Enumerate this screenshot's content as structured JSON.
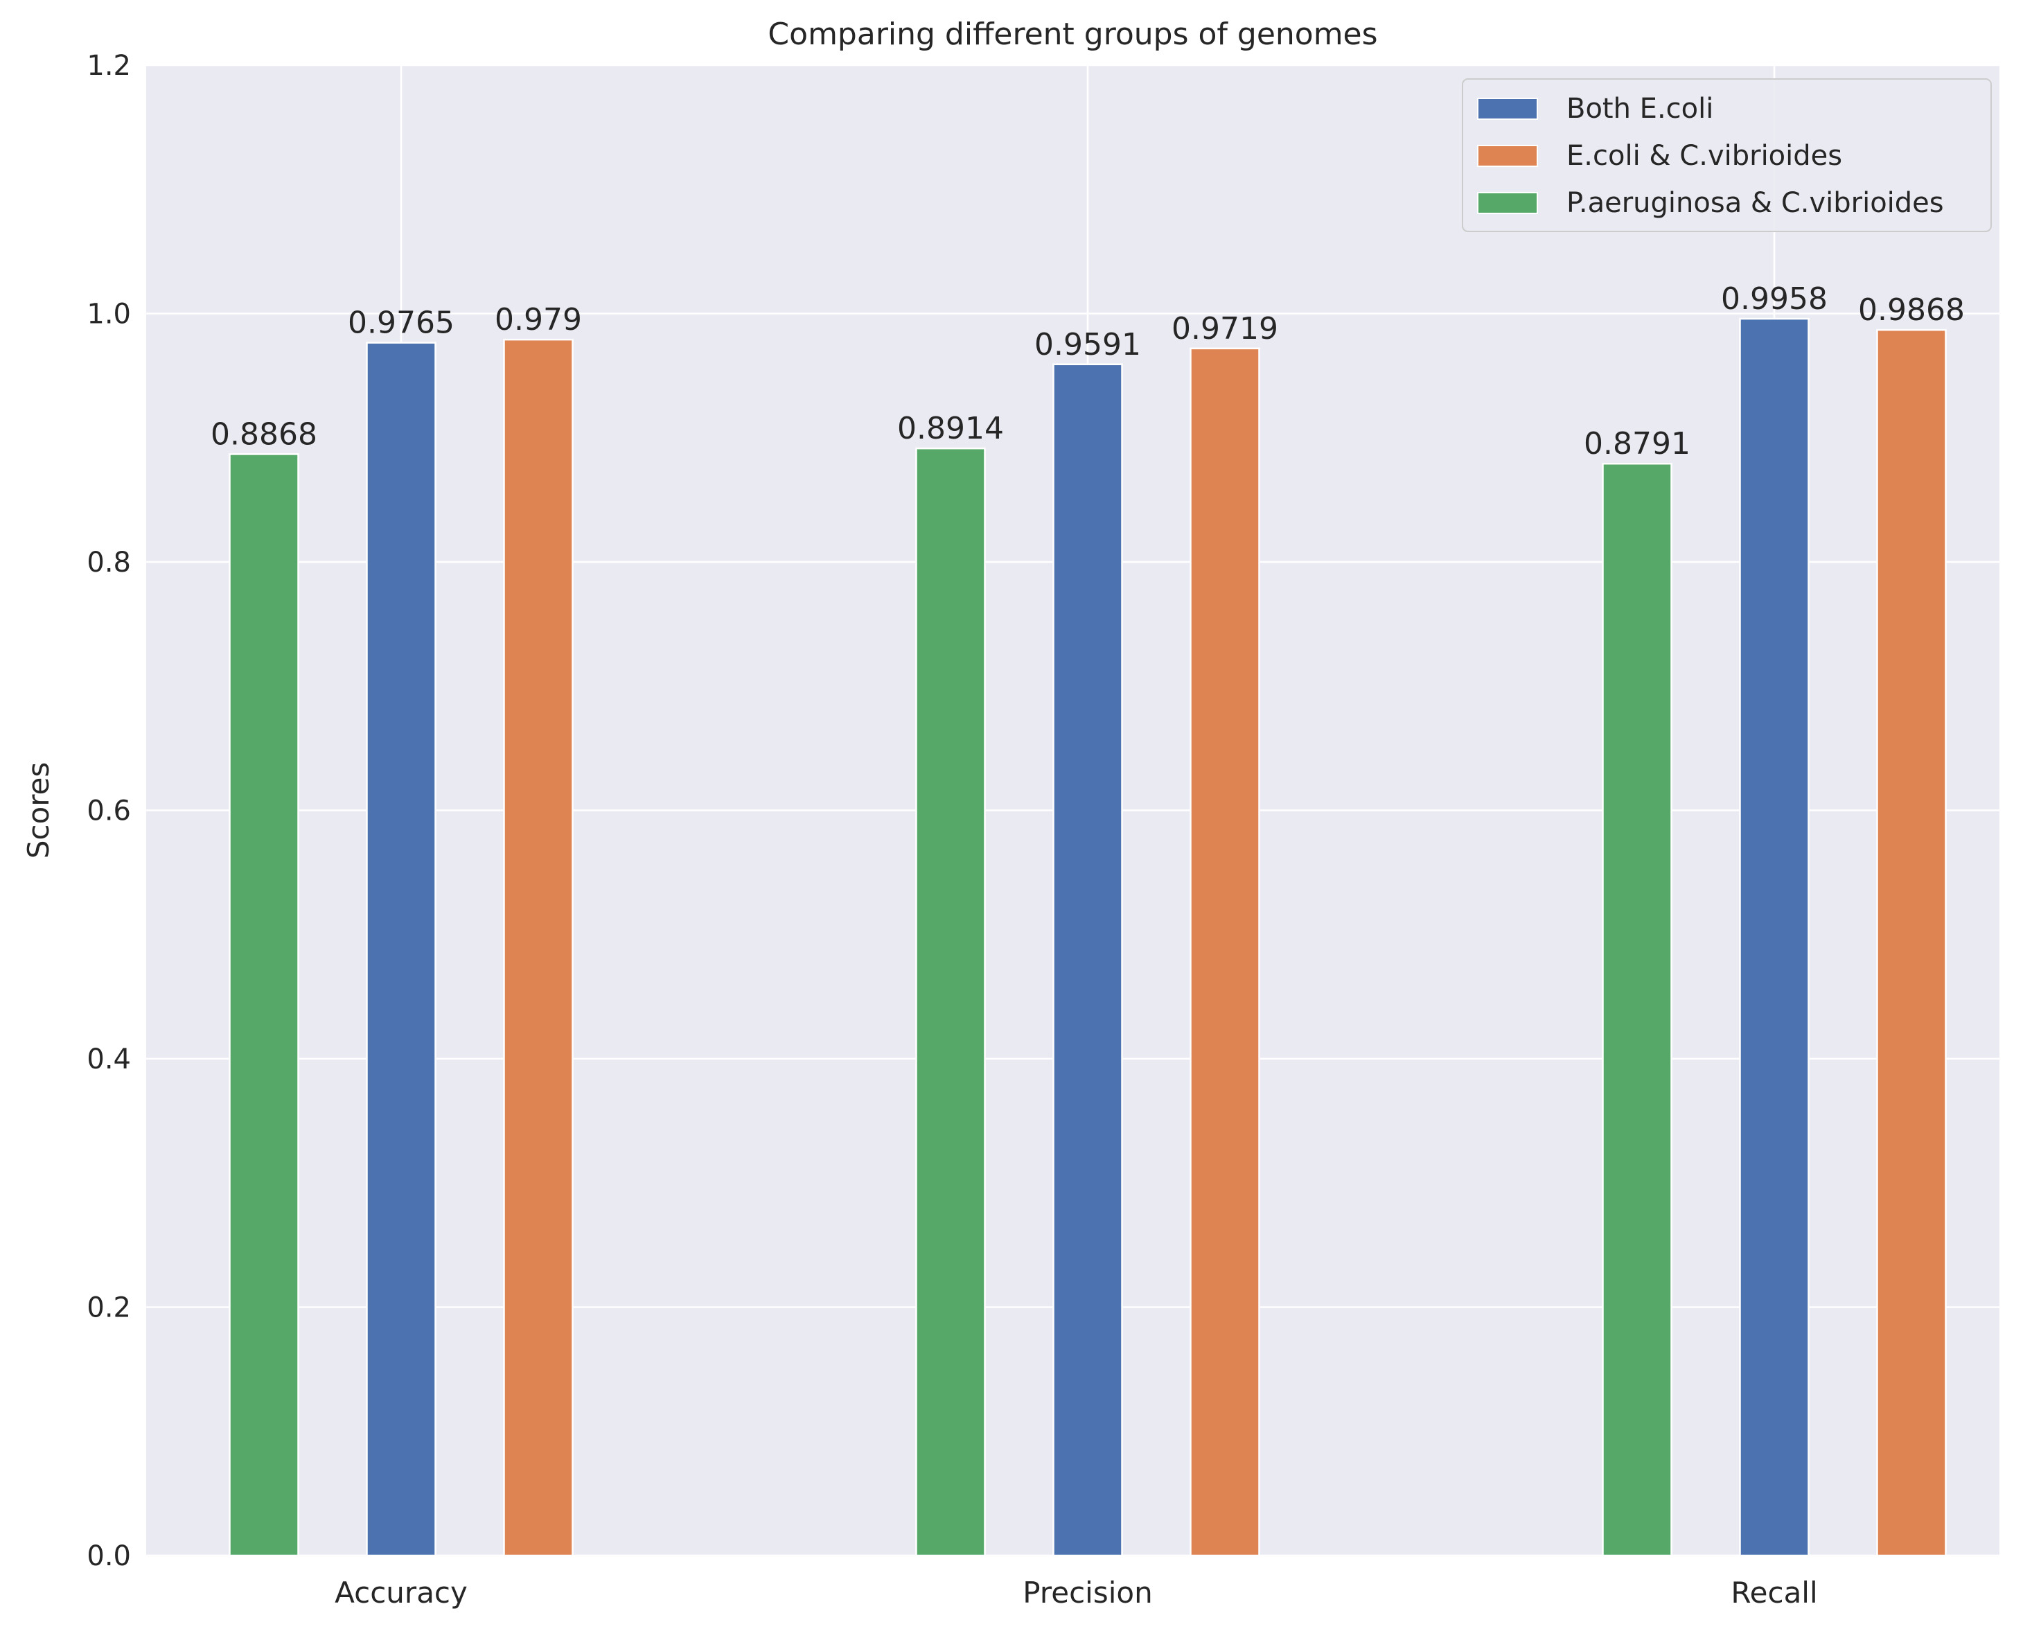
{
  "chart_data": {
    "type": "bar",
    "title": "Comparing different groups of genomes",
    "xlabel": "",
    "ylabel": "Scores",
    "categories": [
      "Accuracy",
      "Precision",
      "Recall"
    ],
    "ylim": [
      0,
      1.2
    ],
    "yticks": [
      "0.0",
      "0.2",
      "0.4",
      "0.6",
      "0.8",
      "1.0",
      "1.2"
    ],
    "grid": true,
    "legend_position": "top-right",
    "series": [
      {
        "name": "P.aeruginosa & C.vibrioides",
        "color": "#55a868",
        "values": [
          0.8868,
          0.8914,
          0.8791
        ],
        "labels": [
          "0.8868",
          "0.8914",
          "0.8791"
        ]
      },
      {
        "name": "Both E.coli",
        "color": "#4c72b0",
        "values": [
          0.9765,
          0.9591,
          0.9958
        ],
        "labels": [
          "0.9765",
          "0.9591",
          "0.9958"
        ]
      },
      {
        "name": "E.coli & C.vibrioides",
        "color": "#dd8452",
        "values": [
          0.979,
          0.9719,
          0.9868
        ],
        "labels": [
          "0.979",
          "0.9719",
          "0.9868"
        ]
      }
    ],
    "legend_order": [
      "Both E.coli",
      "E.coli & C.vibrioides",
      "P.aeruginosa & C.vibrioides"
    ],
    "colors": {
      "plot_background": "#eaeaf2",
      "grid": "#ffffff",
      "text": "#262626"
    }
  }
}
